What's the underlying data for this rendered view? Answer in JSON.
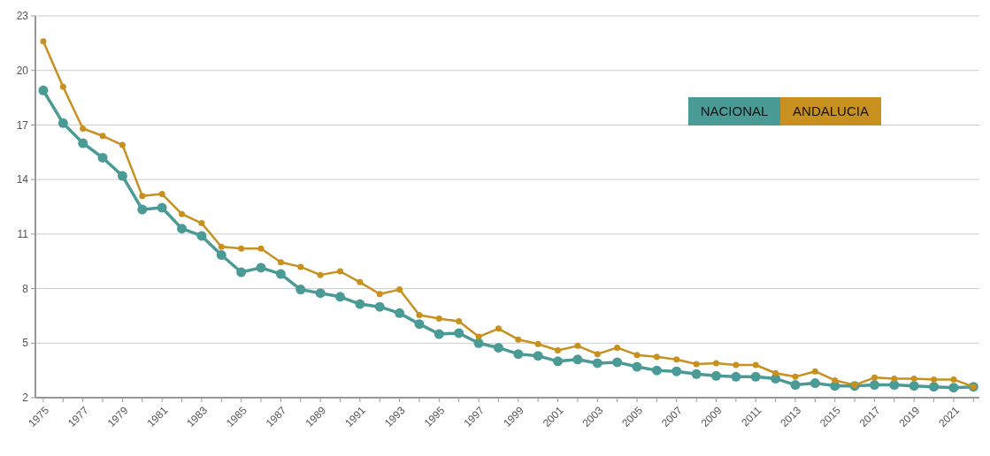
{
  "chart_data": {
    "type": "line",
    "x": [
      1975,
      1976,
      1977,
      1978,
      1979,
      1980,
      1981,
      1982,
      1983,
      1984,
      1985,
      1986,
      1987,
      1988,
      1989,
      1990,
      1991,
      1992,
      1993,
      1994,
      1995,
      1996,
      1997,
      1998,
      1999,
      2000,
      2001,
      2002,
      2003,
      2004,
      2005,
      2006,
      2007,
      2008,
      2009,
      2010,
      2011,
      2012,
      2013,
      2014,
      2015,
      2016,
      2017,
      2018,
      2019,
      2020,
      2021,
      2022
    ],
    "series": [
      {
        "name": "NACIONAL",
        "color": "#4a9a96",
        "values": [
          18.9,
          17.1,
          16.0,
          15.2,
          14.2,
          12.35,
          12.45,
          11.3,
          10.9,
          9.85,
          8.9,
          9.15,
          8.8,
          7.95,
          7.75,
          7.55,
          7.15,
          7.0,
          6.65,
          6.05,
          5.5,
          5.55,
          5.0,
          4.75,
          4.4,
          4.3,
          4.0,
          4.1,
          3.9,
          3.95,
          3.7,
          3.5,
          3.45,
          3.3,
          3.2,
          3.15,
          3.15,
          3.05,
          2.7,
          2.8,
          2.65,
          2.65,
          2.7,
          2.7,
          2.65,
          2.6,
          2.55,
          2.6
        ]
      },
      {
        "name": "ANDALUCIA",
        "color": "#c8901e",
        "values": [
          21.6,
          19.1,
          16.8,
          16.4,
          15.9,
          13.1,
          13.2,
          12.1,
          11.6,
          10.3,
          10.2,
          10.2,
          9.45,
          9.2,
          8.75,
          8.95,
          8.35,
          7.7,
          7.95,
          6.55,
          6.35,
          6.2,
          5.35,
          5.8,
          5.2,
          4.95,
          4.6,
          4.85,
          4.4,
          4.75,
          4.35,
          4.25,
          4.1,
          3.85,
          3.9,
          3.8,
          3.8,
          3.35,
          3.15,
          3.45,
          2.95,
          2.7,
          3.1,
          3.05,
          3.05,
          3.0,
          3.0,
          2.6
        ]
      }
    ],
    "xlim": [
      1974.6,
      2022.3
    ],
    "xticks": [
      1975,
      1977,
      1979,
      1981,
      1983,
      1985,
      1987,
      1989,
      1991,
      1993,
      1995,
      1997,
      1999,
      2001,
      2003,
      2005,
      2007,
      2009,
      2011,
      2013,
      2015,
      2017,
      2019,
      2021
    ],
    "ylim": [
      2,
      23
    ],
    "yticks": [
      2,
      5,
      8,
      11,
      14,
      17,
      20,
      23
    ],
    "grid": "y",
    "legend": "top right",
    "marker": "circle",
    "line_style": "solid"
  }
}
